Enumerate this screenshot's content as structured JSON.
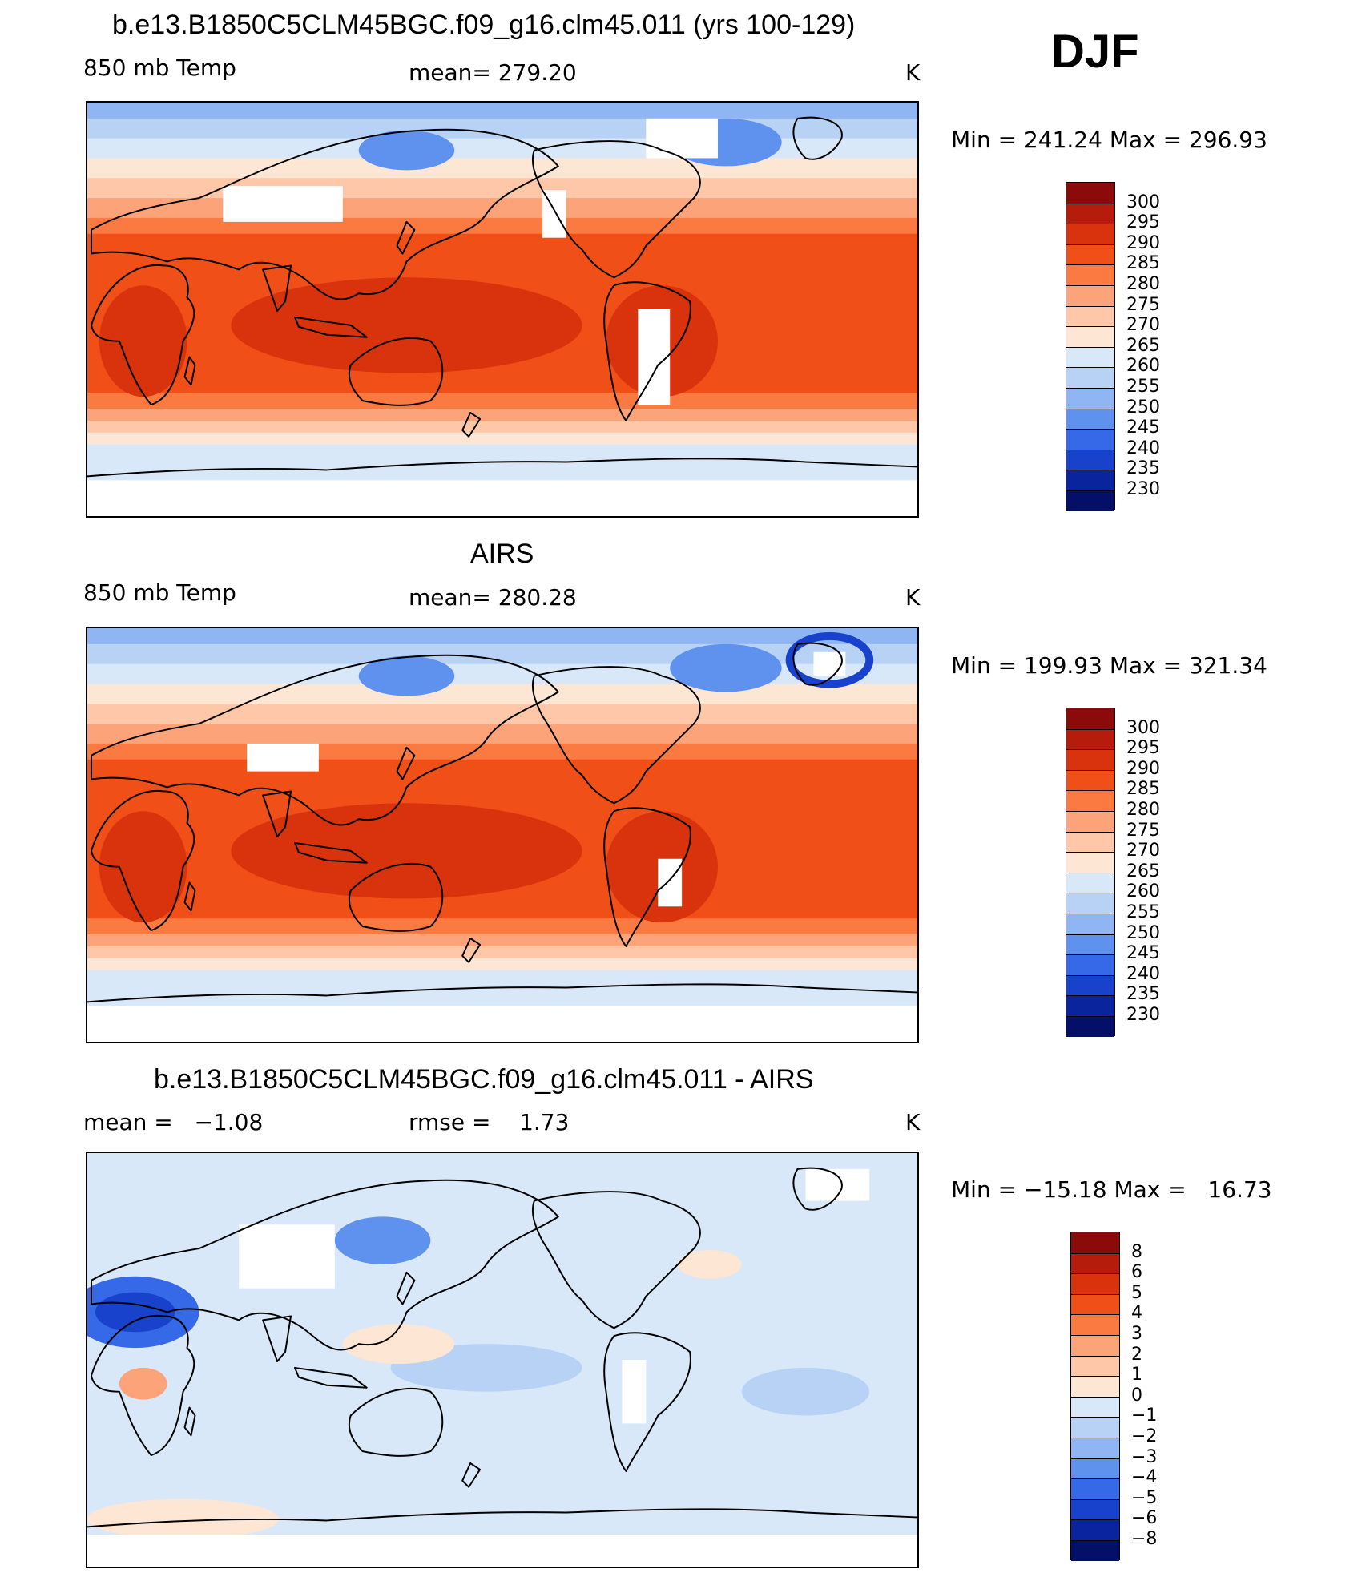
{
  "season": "DJF",
  "panels": [
    {
      "title": "b.e13.B1850C5CLM45BGC.f09_g16.clm45.011 (yrs 100-129)",
      "left_label": "850 mb Temp",
      "center_label": "mean= 279.20",
      "units": "K",
      "minmax": "Min = 241.24 Max = 296.93",
      "type": "abs"
    },
    {
      "title": "AIRS",
      "left_label": "850 mb Temp",
      "center_label": "mean= 280.28",
      "units": "K",
      "minmax": "Min = 199.93 Max = 321.34",
      "type": "abs"
    },
    {
      "title": "b.e13.B1850C5CLM45BGC.f09_g16.clm45.011 - AIRS",
      "left_label": "mean =   −1.08",
      "center_label": "rmse =    1.73",
      "units": "K",
      "minmax": "Min = −15.18 Max =   16.73",
      "type": "diff"
    }
  ],
  "colorbars": {
    "abs": {
      "labels": [
        "300",
        "295",
        "290",
        "285",
        "280",
        "275",
        "270",
        "265",
        "260",
        "255",
        "250",
        "245",
        "240",
        "235",
        "230"
      ],
      "colors": [
        "#8b0a0a",
        "#b51c0c",
        "#d8330c",
        "#f04f17",
        "#fa7a42",
        "#fca37a",
        "#fdc7a8",
        "#fde6d4",
        "#d8e8f8",
        "#b8d2f6",
        "#8fb6f3",
        "#5f92ee",
        "#3569e8",
        "#1942cc",
        "#0a249e",
        "#040f6a"
      ]
    },
    "diff": {
      "labels": [
        "8",
        "6",
        "5",
        "4",
        "3",
        "2",
        "1",
        "0",
        "−1",
        "−2",
        "−3",
        "−4",
        "−5",
        "−6",
        "−8"
      ],
      "colors": [
        "#8b0a0a",
        "#b51c0c",
        "#d8330c",
        "#f04f17",
        "#fa7a42",
        "#fca37a",
        "#fdc7a8",
        "#fde6d4",
        "#d8e8f8",
        "#b8d2f6",
        "#8fb6f3",
        "#5f92ee",
        "#3569e8",
        "#1942cc",
        "#0a249e",
        "#040f6a"
      ]
    }
  }
}
